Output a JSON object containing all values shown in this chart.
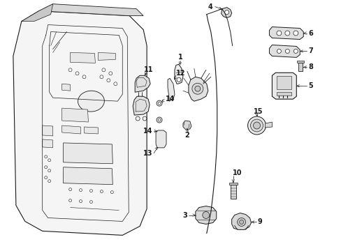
{
  "background_color": "#ffffff",
  "line_color": "#1a1a1a",
  "fig_width": 4.89,
  "fig_height": 3.6,
  "dpi": 100,
  "label_fontsize": 7.0
}
